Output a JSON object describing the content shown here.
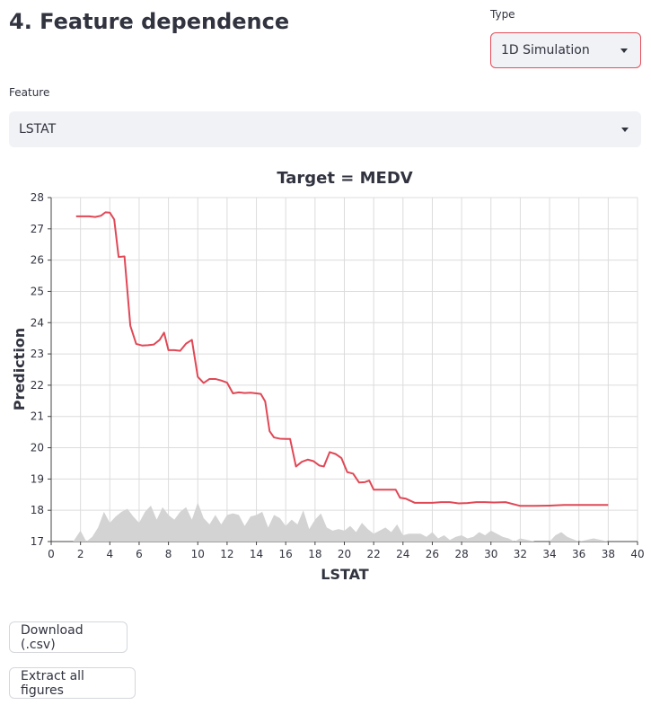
{
  "section": {
    "title": "4. Feature dependence"
  },
  "type_select": {
    "label": "Type",
    "value": "1D Simulation"
  },
  "feature_select": {
    "label": "Feature",
    "value": "LSTAT"
  },
  "buttons": {
    "download": "Download (.csv)",
    "extract": "Extract all figures"
  },
  "colors": {
    "line": "#e04856",
    "area": "#d3d3d3",
    "grid": "#dcdcdc"
  },
  "chart_data": {
    "type": "line",
    "title": "Target = MEDV",
    "xlabel": "LSTAT",
    "ylabel": "Prediction",
    "xlim": [
      0,
      40
    ],
    "ylim": [
      17,
      28
    ],
    "xticks": [
      0,
      2,
      4,
      6,
      8,
      10,
      12,
      14,
      16,
      18,
      20,
      22,
      24,
      26,
      28,
      30,
      32,
      34,
      36,
      38,
      40
    ],
    "yticks": [
      17,
      18,
      19,
      20,
      21,
      22,
      23,
      24,
      25,
      26,
      27,
      28
    ],
    "grid": true,
    "series": [
      {
        "x": [
          1.7,
          2.2,
          2.6,
          3.0,
          3.4,
          3.7,
          4.0,
          4.3,
          4.6,
          5.0,
          5.4,
          5.8,
          6.2,
          6.6,
          7.0,
          7.4,
          7.7,
          8.0,
          8.4,
          8.8,
          9.2,
          9.6,
          10.0,
          10.4,
          10.8,
          11.2,
          11.6,
          12.0,
          12.4,
          12.8,
          13.2,
          13.6,
          14.0,
          14.3,
          14.6,
          14.9,
          15.2,
          15.6,
          16.0,
          16.3,
          16.7,
          17.1,
          17.5,
          17.9,
          18.3,
          18.6,
          19.0,
          19.4,
          19.8,
          20.2,
          20.6,
          21.0,
          21.4,
          21.7,
          22.0,
          22.4,
          22.8,
          23.1,
          23.5,
          23.8,
          24.2,
          24.8,
          25.4,
          26.0,
          26.6,
          27.2,
          27.8,
          28.4,
          29.0,
          29.6,
          30.2,
          31.0,
          32.0,
          33.0,
          34.0,
          35.0,
          36.0,
          37.0,
          38.0
        ],
        "y": [
          27.4,
          27.4,
          27.4,
          27.38,
          27.42,
          27.53,
          27.52,
          27.3,
          26.1,
          26.12,
          23.9,
          23.32,
          23.27,
          23.28,
          23.3,
          23.45,
          23.68,
          23.12,
          23.12,
          23.1,
          23.33,
          23.45,
          22.27,
          22.07,
          22.2,
          22.2,
          22.15,
          22.08,
          21.74,
          21.77,
          21.75,
          21.76,
          21.74,
          21.72,
          21.48,
          20.53,
          20.33,
          20.29,
          20.28,
          20.28,
          19.4,
          19.55,
          19.62,
          19.57,
          19.43,
          19.4,
          19.86,
          19.8,
          19.67,
          19.22,
          19.17,
          18.89,
          18.9,
          18.95,
          18.66,
          18.66,
          18.66,
          18.66,
          18.66,
          18.4,
          18.37,
          18.24,
          18.24,
          18.24,
          18.26,
          18.26,
          18.22,
          18.23,
          18.26,
          18.26,
          18.25,
          18.26,
          18.14,
          18.14,
          18.15,
          18.17,
          18.17,
          18.17,
          18.17
        ]
      }
    ],
    "distribution": {
      "x": [
        1.5,
        2.0,
        2.4,
        2.8,
        3.2,
        3.6,
        4.0,
        4.4,
        4.8,
        5.2,
        5.6,
        6.0,
        6.4,
        6.8,
        7.2,
        7.6,
        8.0,
        8.4,
        8.8,
        9.2,
        9.6,
        10.0,
        10.4,
        10.8,
        11.2,
        11.6,
        12.0,
        12.4,
        12.8,
        13.2,
        13.6,
        14.0,
        14.4,
        14.8,
        15.2,
        15.6,
        16.0,
        16.4,
        16.8,
        17.2,
        17.6,
        18.0,
        18.4,
        18.8,
        19.2,
        19.6,
        20.0,
        20.4,
        20.8,
        21.2,
        21.6,
        22.0,
        22.4,
        22.8,
        23.2,
        23.6,
        24.0,
        24.4,
        24.8,
        25.2,
        25.6,
        26.0,
        26.4,
        26.8,
        27.2,
        27.6,
        28.0,
        28.4,
        28.8,
        29.2,
        29.6,
        30.0,
        30.4,
        30.8,
        31.2,
        31.6,
        32.0,
        33.0,
        34.0,
        34.4,
        34.8,
        35.2,
        36.0,
        37.0,
        38.0
      ],
      "y": [
        17.0,
        17.35,
        17.0,
        17.15,
        17.45,
        17.95,
        17.6,
        17.8,
        17.95,
        18.05,
        17.8,
        17.6,
        17.95,
        18.15,
        17.7,
        18.1,
        17.85,
        17.7,
        17.95,
        18.1,
        17.7,
        18.25,
        17.75,
        17.55,
        17.85,
        17.55,
        17.85,
        17.9,
        17.85,
        17.5,
        17.8,
        17.85,
        17.95,
        17.45,
        17.85,
        17.75,
        17.5,
        17.7,
        17.55,
        18.0,
        17.4,
        17.7,
        17.9,
        17.45,
        17.35,
        17.4,
        17.35,
        17.5,
        17.3,
        17.6,
        17.4,
        17.25,
        17.35,
        17.45,
        17.3,
        17.55,
        17.2,
        17.25,
        17.25,
        17.25,
        17.15,
        17.3,
        17.1,
        17.2,
        17.05,
        17.15,
        17.2,
        17.1,
        17.15,
        17.3,
        17.2,
        17.35,
        17.25,
        17.15,
        17.1,
        17.0,
        17.1,
        17.0,
        17.0,
        17.2,
        17.3,
        17.15,
        17.0,
        17.1,
        17.0
      ]
    }
  }
}
